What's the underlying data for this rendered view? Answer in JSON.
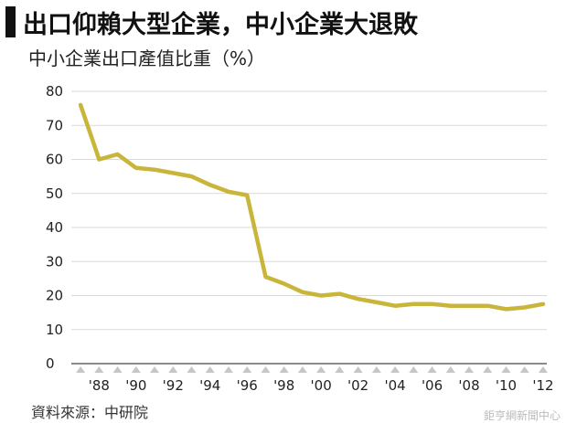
{
  "title": "出口仰賴大型企業，中小企業大退敗",
  "subtitle": "中小企業出口產值比重（%）",
  "source": "資料來源：中研院",
  "watermark": "鉅亨網新聞中心",
  "chart_data": {
    "type": "line",
    "title": "出口仰賴大型企業，中小企業大退敗",
    "ylabel": "中小企業出口產值比重（%）",
    "xlabel": "",
    "ylim": [
      0,
      80
    ],
    "yticks": [
      "0",
      "10",
      "20",
      "30",
      "40",
      "50",
      "60",
      "70",
      "80"
    ],
    "xlim": [
      1986.5,
      2012.2
    ],
    "xticks": [
      "'88",
      "'90",
      "'92",
      "'94",
      "'96",
      "'98",
      "'00",
      "'02",
      "'04",
      "'06",
      "'08",
      "'10",
      "'12"
    ],
    "grid": true,
    "line_color": "#c9b53a",
    "series": [
      {
        "x": [
          1987,
          1988,
          1989,
          1990,
          1991,
          1992,
          1993,
          1994,
          1995,
          1996,
          1997,
          1998,
          1999,
          2000,
          2001,
          2002,
          2003,
          2004,
          2005,
          2006,
          2007,
          2008,
          2009,
          2010,
          2011,
          2012
        ],
        "values": [
          76,
          60,
          61.5,
          57.5,
          57,
          56,
          55,
          52.5,
          50.5,
          49.5,
          25.5,
          23.5,
          21,
          20,
          20.5,
          19,
          18,
          17,
          17.5,
          17.5,
          17,
          17,
          17,
          16,
          16.5,
          17.5
        ]
      }
    ]
  }
}
